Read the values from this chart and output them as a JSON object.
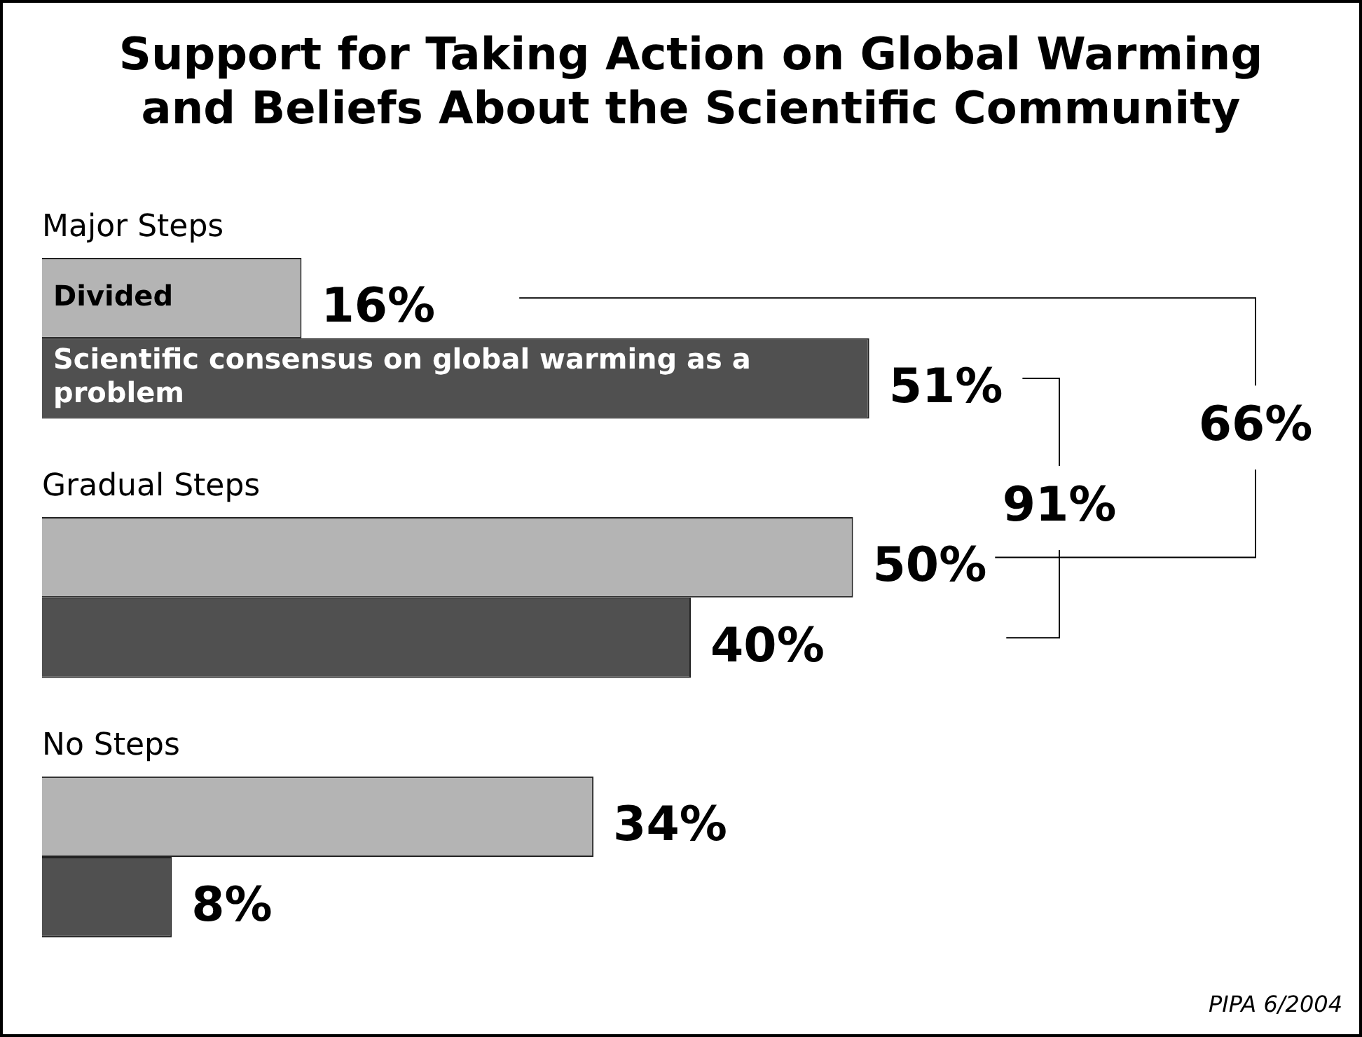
{
  "chart_data": {
    "type": "bar",
    "orientation": "horizontal",
    "title": [
      "Support for Taking Action on Global Warming",
      "and Beliefs About the Scientific Community"
    ],
    "categories": [
      "Major Steps",
      "Gradual Steps",
      "No Steps"
    ],
    "series": [
      {
        "name": "Divided",
        "color": "#b4b4b4",
        "values": [
          16,
          50,
          34
        ],
        "value_labels": [
          "16%",
          "50%",
          "34%"
        ]
      },
      {
        "name": "Scientific consensus on global warming as a problem",
        "color": "#505050",
        "values": [
          51,
          40,
          8
        ],
        "value_labels": [
          "51%",
          "40%",
          "8%"
        ]
      }
    ],
    "legend": false,
    "annotations": [
      "66%",
      "91%",
      "PIPA 6/2004"
    ]
  }
}
